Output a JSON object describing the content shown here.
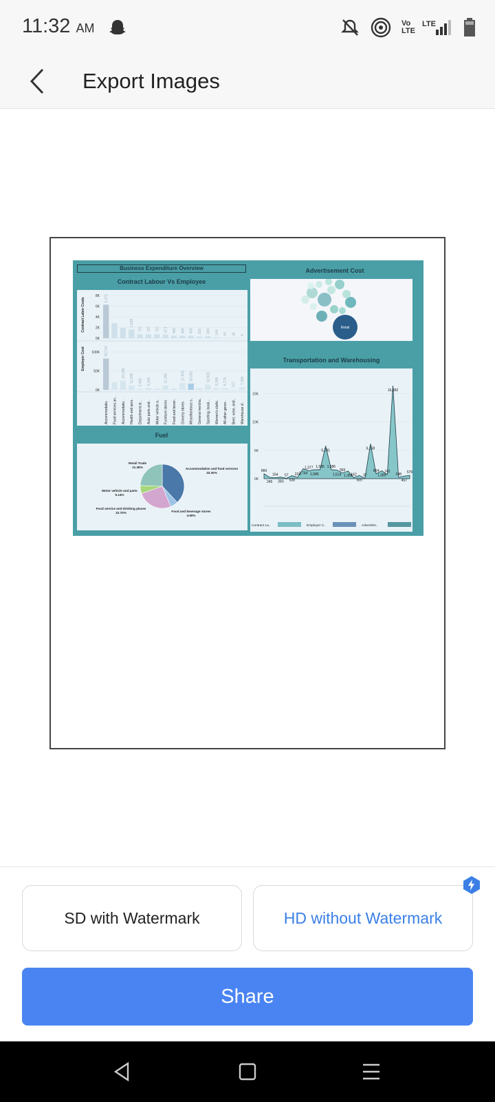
{
  "status": {
    "time": "11:32",
    "ampm": "AM",
    "network_label_1": "Vo LTE",
    "network_label_2": "LTE"
  },
  "header": {
    "title": "Export Images"
  },
  "preview": {
    "dashboard_title": "Business Expenditure Overview",
    "contract_panel": {
      "title": "Contract Labour Vs Employee",
      "y1_label": "Contract Labor Costs",
      "y1_ticks": [
        "8K",
        "6K",
        "4K",
        "2K",
        "0K"
      ],
      "y2_label": "Employer Cost",
      "y2_ticks": [
        "100K",
        "50K",
        "0K"
      ],
      "categories": [
        "Accommodatio..",
        "Food services an..",
        "Accommodatio..",
        "Health and pers..",
        "Department st..",
        "Auto parts and ..",
        "Motor vehicle a..",
        "Furniture stores",
        "Food and bever..",
        "Grocery stores",
        "Miscellaneous s..",
        "General mercha..",
        "Sporting, book,..",
        "Women's clothi..",
        "All other gener..",
        "Beer, wine, and..",
        "Warehouse cl.."
      ],
      "contract_labels": [
        "6,271",
        "",
        "",
        "1,638",
        "737",
        "737",
        "737",
        "671",
        "485",
        "466",
        "459",
        "318",
        "369",
        "140",
        "43",
        "26",
        "4"
      ],
      "employer_labels": [
        "82,734",
        "",
        "24,090",
        "11,305",
        "2,405",
        "5,140",
        "",
        "11,350",
        "",
        "17,659",
        "16,681",
        "",
        "13,920",
        "5,188",
        "4,779",
        "757",
        "7,036"
      ]
    },
    "ad_panel": {
      "title": "Advertisement Cost",
      "bubble_label": "Retail"
    },
    "fuel_panel": {
      "title": "Fuel",
      "slices": [
        {
          "label": "Accommodation and food services",
          "pct": "33.30%"
        },
        {
          "label": "Food and beverage stores",
          "pct": "4.90%"
        },
        {
          "label": "Food service and drinking places",
          "pct": "22.70%"
        },
        {
          "label": "Motor vehicle and parts",
          "pct": "5.14%"
        },
        {
          "label": "Retail Trade",
          "pct": "21.38%"
        }
      ]
    },
    "transport_panel": {
      "title": "Transportation and Warehousing",
      "y_ticks": [
        "15K",
        "10K",
        "5K",
        "0K"
      ],
      "point_labels": [
        "869",
        "245",
        "164",
        "283",
        "57",
        "538",
        "224",
        "1,764",
        "1,377",
        "1,585",
        "1,585",
        "5,781",
        "1,586",
        "1,514",
        "993",
        "1,359",
        "162",
        "569",
        "37",
        "6,158",
        "864",
        "1,389",
        "742",
        "16,392",
        "248",
        "457",
        "579"
      ],
      "legend": [
        "Contract La..",
        "Employer C..",
        "Advertisin.."
      ]
    }
  },
  "chart_data": [
    {
      "type": "pie",
      "title": "Fuel",
      "categories": [
        "Accommodation and food services",
        "Food and beverage stores",
        "Food service and drinking places",
        "Motor vehicle and parts",
        "Retail Trade"
      ],
      "values": [
        33.3,
        4.9,
        22.7,
        5.14,
        21.38
      ]
    },
    {
      "type": "area",
      "title": "Transportation and Warehousing",
      "values": [
        869,
        245,
        164,
        283,
        57,
        538,
        224,
        1764,
        1377,
        1585,
        1585,
        5781,
        1586,
        1514,
        993,
        1359,
        162,
        569,
        37,
        6158,
        864,
        1389,
        742,
        16392,
        248,
        457,
        579
      ],
      "ylim": [
        0,
        17000
      ]
    },
    {
      "type": "bar",
      "title": "Contract Labour Vs Employee",
      "ylabel": "Contract Labor Costs",
      "values": [
        6271,
        2800,
        1900,
        1638,
        737,
        737,
        737,
        671,
        485,
        466,
        459,
        318,
        369,
        140,
        43,
        26,
        4
      ],
      "ylim": [
        0,
        8000
      ]
    }
  ],
  "options": {
    "sd_label": "SD with Watermark",
    "hd_label": "HD without Watermark"
  },
  "actions": {
    "share_label": "Share"
  },
  "colors": {
    "accent": "#4a84f2",
    "hd_text": "#3b7fe6",
    "dashboard_bg": "#4a9fa6"
  }
}
